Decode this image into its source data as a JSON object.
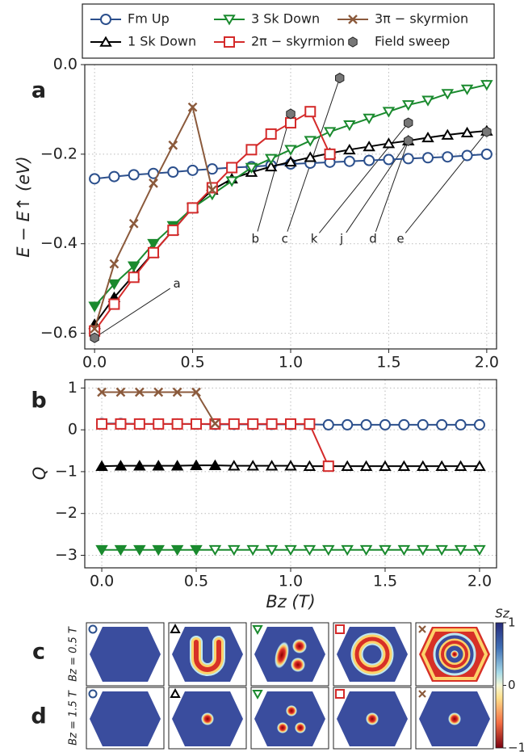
{
  "chart_data": [
    {
      "type": "line",
      "panel_label": "a",
      "ylabel": "E − E↑ (eV)",
      "xlim": [
        -0.05,
        2.05
      ],
      "ylim": [
        -0.635,
        0.0
      ],
      "xticks": [
        {
          "value": 0,
          "label": "0.0"
        },
        {
          "value": 0.5,
          "label": "0.5"
        },
        {
          "value": 1,
          "label": "1.0"
        },
        {
          "value": 1.5,
          "label": "1.5"
        },
        {
          "value": 2,
          "label": "2.0"
        }
      ],
      "yticks": [
        {
          "value": 0,
          "label": "0.0"
        },
        {
          "value": -0.2,
          "label": "−0.2"
        },
        {
          "value": -0.4,
          "label": "−0.4"
        },
        {
          "value": -0.6,
          "label": "−0.6"
        }
      ],
      "grid": true,
      "series": [
        {
          "name": "Fm Up",
          "color": "#2b4f8c",
          "marker": "circle",
          "line": true,
          "filled": false,
          "x": [
            0,
            0.1,
            0.2,
            0.3,
            0.4,
            0.5,
            0.6,
            0.7,
            0.8,
            0.9,
            1.0,
            1.1,
            1.2,
            1.3,
            1.4,
            1.5,
            1.6,
            1.7,
            1.8,
            1.9,
            2.0
          ],
          "values": [
            -0.255,
            -0.25,
            -0.246,
            -0.243,
            -0.24,
            -0.236,
            -0.233,
            -0.23,
            -0.228,
            -0.225,
            -0.222,
            -0.22,
            -0.218,
            -0.216,
            -0.214,
            -0.212,
            -0.21,
            -0.208,
            -0.206,
            -0.203,
            -0.2
          ]
        },
        {
          "name": "1 Sk Down",
          "color": "#000000",
          "marker": "triangle-up",
          "line": true,
          "filled": [
            true,
            true,
            true,
            true,
            true,
            true,
            true,
            false,
            false,
            false,
            false,
            false,
            false,
            false,
            false,
            false,
            false,
            false,
            false,
            false,
            false
          ],
          "x": [
            0,
            0.1,
            0.2,
            0.3,
            0.4,
            0.5,
            0.6,
            0.7,
            0.8,
            0.9,
            1.0,
            1.1,
            1.2,
            1.3,
            1.4,
            1.5,
            1.6,
            1.7,
            1.8,
            1.9,
            2.0
          ],
          "values": [
            -0.58,
            -0.52,
            -0.47,
            -0.42,
            -0.37,
            -0.32,
            -0.28,
            -0.255,
            -0.24,
            -0.228,
            -0.217,
            -0.207,
            -0.198,
            -0.19,
            -0.183,
            -0.176,
            -0.17,
            -0.163,
            -0.157,
            -0.152,
            -0.148
          ]
        },
        {
          "name": "3 Sk Down",
          "color": "#1a8a2e",
          "marker": "triangle-down",
          "line": true,
          "filled": [
            true,
            true,
            true,
            true,
            true,
            true,
            false,
            false,
            false,
            false,
            false,
            false,
            false,
            false,
            false,
            false,
            false,
            false,
            false,
            false,
            false
          ],
          "x": [
            0,
            0.1,
            0.2,
            0.3,
            0.4,
            0.5,
            0.6,
            0.7,
            0.8,
            0.9,
            1.0,
            1.1,
            1.2,
            1.3,
            1.4,
            1.5,
            1.6,
            1.7,
            1.8,
            1.9,
            2.0
          ],
          "values": [
            -0.54,
            -0.49,
            -0.45,
            -0.4,
            -0.36,
            -0.32,
            -0.29,
            -0.26,
            -0.23,
            -0.21,
            -0.19,
            -0.17,
            -0.15,
            -0.135,
            -0.12,
            -0.105,
            -0.09,
            -0.08,
            -0.065,
            -0.055,
            -0.045
          ]
        },
        {
          "name": "2π − skyrmion",
          "color": "#d42a2a",
          "marker": "square",
          "line": true,
          "filled": false,
          "x": [
            0,
            0.1,
            0.2,
            0.3,
            0.4,
            0.5,
            0.6,
            0.7,
            0.8,
            0.9,
            1.0,
            1.1,
            1.2
          ],
          "values": [
            -0.595,
            -0.535,
            -0.475,
            -0.42,
            -0.37,
            -0.32,
            -0.275,
            -0.23,
            -0.19,
            -0.155,
            -0.13,
            -0.105,
            -0.2
          ]
        },
        {
          "name": "3π − skyrmion",
          "color": "#8b5a3c",
          "marker": "x",
          "line": true,
          "filled": false,
          "x": [
            0,
            0.1,
            0.2,
            0.3,
            0.4,
            0.5,
            0.6
          ],
          "values": [
            -0.59,
            -0.445,
            -0.355,
            -0.265,
            -0.18,
            -0.095,
            -0.28
          ]
        },
        {
          "name": "Field sweep",
          "color": "#777777",
          "marker": "hexagon",
          "line": false,
          "filled": true,
          "x": [
            0,
            1.0,
            1.25,
            1.6,
            1.6,
            2.0
          ],
          "values": [
            -0.61,
            -0.11,
            -0.03,
            -0.13,
            -0.17,
            -0.15
          ]
        }
      ],
      "annotations": [
        {
          "text": "a",
          "xy": [
            0,
            -0.61
          ],
          "xytext": [
            0.42,
            -0.49
          ]
        },
        {
          "text": "b",
          "xy": [
            1.0,
            -0.11
          ],
          "xytext": [
            0.82,
            -0.39
          ]
        },
        {
          "text": "c",
          "xy": [
            1.25,
            -0.03
          ],
          "xytext": [
            0.97,
            -0.39
          ]
        },
        {
          "text": "k",
          "xy": [
            1.6,
            -0.13
          ],
          "xytext": [
            1.12,
            -0.39
          ]
        },
        {
          "text": "j",
          "xy": [
            1.6,
            -0.17
          ],
          "xytext": [
            1.26,
            -0.39
          ]
        },
        {
          "text": "d",
          "xy": [
            1.6,
            -0.17
          ],
          "xytext": [
            1.42,
            -0.39
          ]
        },
        {
          "text": "e",
          "xy": [
            2.0,
            -0.15
          ],
          "xytext": [
            1.56,
            -0.39
          ]
        }
      ]
    },
    {
      "type": "line",
      "panel_label": "b",
      "ylabel": "Q",
      "xlabel": "Bz (T)",
      "xlim": [
        -0.09,
        2.09
      ],
      "ylim": [
        -3.3,
        1.2
      ],
      "xticks": [
        {
          "value": 0,
          "label": "0.0"
        },
        {
          "value": 0.5,
          "label": "0.5"
        },
        {
          "value": 1,
          "label": "1.0"
        },
        {
          "value": 1.5,
          "label": "1.5"
        },
        {
          "value": 2,
          "label": "2.0"
        }
      ],
      "yticks": [
        1,
        0,
        {
          "value": -1,
          "label": "−1"
        },
        {
          "value": -2,
          "label": "−2"
        },
        {
          "value": -3,
          "label": "−3"
        }
      ],
      "grid": true,
      "series": [
        {
          "color": "#2b4f8c",
          "marker": "circle",
          "line": true,
          "filled": false,
          "x": [
            0,
            0.1,
            0.2,
            0.3,
            0.4,
            0.5,
            0.6,
            0.7,
            0.8,
            0.9,
            1.0,
            1.1,
            1.2,
            1.3,
            1.4,
            1.5,
            1.6,
            1.7,
            1.8,
            1.9,
            2.0
          ],
          "values": [
            0.15,
            0.15,
            0.14,
            0.14,
            0.14,
            0.14,
            0.13,
            0.13,
            0.13,
            0.13,
            0.13,
            0.13,
            0.12,
            0.12,
            0.12,
            0.12,
            0.12,
            0.12,
            0.12,
            0.12,
            0.12
          ]
        },
        {
          "color": "#000000",
          "marker": "triangle-up",
          "line": true,
          "filled": [
            true,
            true,
            true,
            true,
            true,
            true,
            true,
            false,
            false,
            false,
            false,
            false,
            false,
            false,
            false,
            false,
            false,
            false,
            false,
            false,
            false
          ],
          "x": [
            0,
            0.1,
            0.2,
            0.3,
            0.4,
            0.5,
            0.6,
            0.7,
            0.8,
            0.9,
            1.0,
            1.1,
            1.2,
            1.3,
            1.4,
            1.5,
            1.6,
            1.7,
            1.8,
            1.9,
            2.0
          ],
          "values": [
            -0.87,
            -0.86,
            -0.86,
            -0.86,
            -0.86,
            -0.85,
            -0.85,
            -0.86,
            -0.86,
            -0.86,
            -0.86,
            -0.87,
            -0.87,
            -0.87,
            -0.87,
            -0.87,
            -0.87,
            -0.87,
            -0.87,
            -0.87,
            -0.87
          ]
        },
        {
          "color": "#1a8a2e",
          "marker": "triangle-down",
          "line": true,
          "filled": [
            true,
            true,
            true,
            true,
            true,
            true,
            false,
            false,
            false,
            false,
            false,
            false,
            false,
            false,
            false,
            false,
            false,
            false,
            false,
            false,
            false
          ],
          "x": [
            0,
            0.1,
            0.2,
            0.3,
            0.4,
            0.5,
            0.6,
            0.7,
            0.8,
            0.9,
            1.0,
            1.1,
            1.2,
            1.3,
            1.4,
            1.5,
            1.6,
            1.7,
            1.8,
            1.9,
            2.0
          ],
          "values": [
            -2.87,
            -2.87,
            -2.87,
            -2.87,
            -2.87,
            -2.87,
            -2.87,
            -2.87,
            -2.87,
            -2.87,
            -2.87,
            -2.87,
            -2.87,
            -2.87,
            -2.87,
            -2.87,
            -2.87,
            -2.87,
            -2.87,
            -2.87,
            -2.87
          ]
        },
        {
          "color": "#d42a2a",
          "marker": "square",
          "line": true,
          "filled": false,
          "x": [
            0,
            0.1,
            0.2,
            0.3,
            0.4,
            0.5,
            0.6,
            0.7,
            0.8,
            0.9,
            1.0,
            1.1,
            1.2
          ],
          "values": [
            0.14,
            0.14,
            0.14,
            0.14,
            0.14,
            0.14,
            0.14,
            0.14,
            0.14,
            0.14,
            0.14,
            0.14,
            -0.87
          ]
        },
        {
          "color": "#8b5a3c",
          "marker": "x",
          "line": true,
          "filled": false,
          "x": [
            0,
            0.1,
            0.2,
            0.3,
            0.4,
            0.5,
            0.6
          ],
          "values": [
            0.9,
            0.9,
            0.9,
            0.9,
            0.9,
            0.9,
            0.15
          ]
        }
      ]
    }
  ],
  "image_panels": {
    "rows": [
      {
        "panel_label": "c",
        "row_label": "Bz = 0.5 T"
      },
      {
        "panel_label": "d",
        "row_label": "Bz = 1.5 T"
      }
    ],
    "colorbar": {
      "label": "Sz",
      "lim": [
        -1,
        1
      ],
      "ticks": [
        1,
        0,
        {
          "value": -1,
          "label": "−1"
        }
      ]
    }
  }
}
